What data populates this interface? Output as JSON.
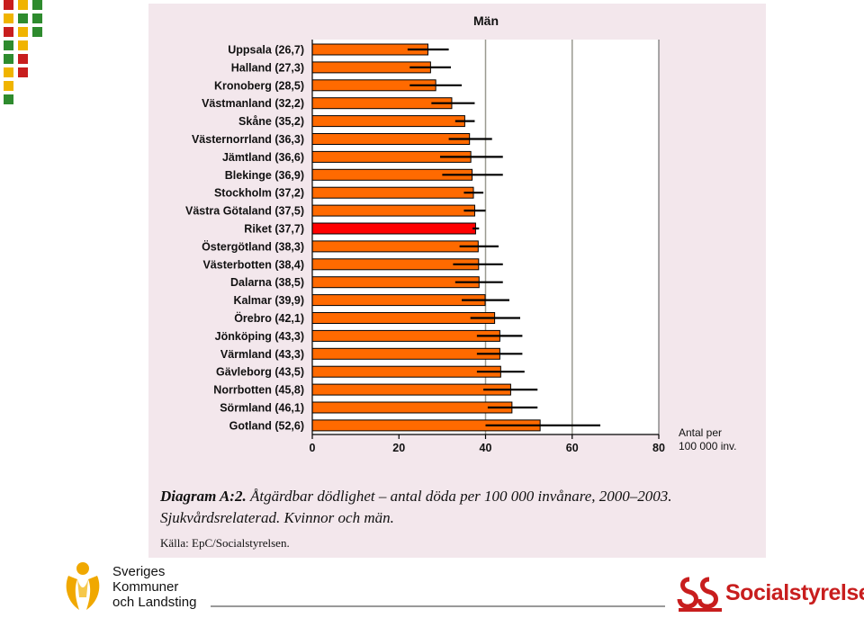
{
  "chart_data": {
    "type": "bar",
    "orientation": "horizontal",
    "title": "Män",
    "categories": [
      "Uppsala (26,7)",
      "Halland (27,3)",
      "Kronoberg (28,5)",
      "Västmanland (32,2)",
      "Skåne (35,2)",
      "Västernorrland (36,3)",
      "Jämtland (36,6)",
      "Blekinge (36,9)",
      "Stockholm (37,2)",
      "Västra Götaland (37,5)",
      "Riket (37,7)",
      "Östergötland (38,3)",
      "Västerbotten (38,4)",
      "Dalarna (38,5)",
      "Kalmar (39,9)",
      "Örebro (42,1)",
      "Jönköping (43,3)",
      "Värmland (43,3)",
      "Gävleborg (43,5)",
      "Norrbotten (45,8)",
      "Sörmland (46,1)",
      "Gotland (52,6)"
    ],
    "values": [
      26.7,
      27.3,
      28.5,
      32.2,
      35.2,
      36.3,
      36.6,
      36.9,
      37.2,
      37.5,
      37.7,
      38.3,
      38.4,
      38.5,
      39.9,
      42.1,
      43.3,
      43.3,
      43.5,
      45.8,
      46.1,
      52.6
    ],
    "ci_low": [
      22.0,
      22.5,
      22.5,
      27.5,
      33.0,
      31.5,
      29.5,
      30.0,
      35.0,
      35.0,
      37.0,
      34.0,
      32.5,
      33.0,
      34.5,
      36.5,
      38.0,
      38.0,
      38.0,
      39.5,
      40.5,
      40.0
    ],
    "ci_high": [
      31.5,
      32.0,
      34.5,
      37.5,
      37.5,
      41.5,
      44.0,
      44.0,
      39.5,
      40.0,
      38.5,
      43.0,
      44.0,
      44.0,
      45.5,
      48.0,
      48.5,
      48.5,
      49.0,
      52.0,
      52.0,
      66.5
    ],
    "highlight_index": 10,
    "xlim": [
      0,
      80
    ],
    "xticks": [
      "0",
      "20",
      "40",
      "60",
      "80"
    ],
    "gridlines": [
      40,
      60
    ],
    "xlabel": "Antal per 100 000 inv.",
    "xlabel_lines": [
      "Antal per",
      "100 000 inv."
    ],
    "colors": {
      "bar": "#ff6a00",
      "highlight": "#ff0000",
      "error_bar": "#000000",
      "plot_bg": "#ffffff",
      "panel_bg": "#f3e7ec"
    }
  },
  "caption": {
    "lead": "Diagram A:2.",
    "text": " Åtgärdbar dödlighet – antal döda per 100 000 invånare, 2000–2003. Sjukvårdsrelaterad. Kvinnor och män."
  },
  "source": "Källa: EpC/Socialstyrelsen.",
  "logos": {
    "skl": [
      "Sveriges",
      "Kommuner",
      "och Landsting"
    ],
    "socialstyrelsen": "Socialstyrelsen"
  }
}
